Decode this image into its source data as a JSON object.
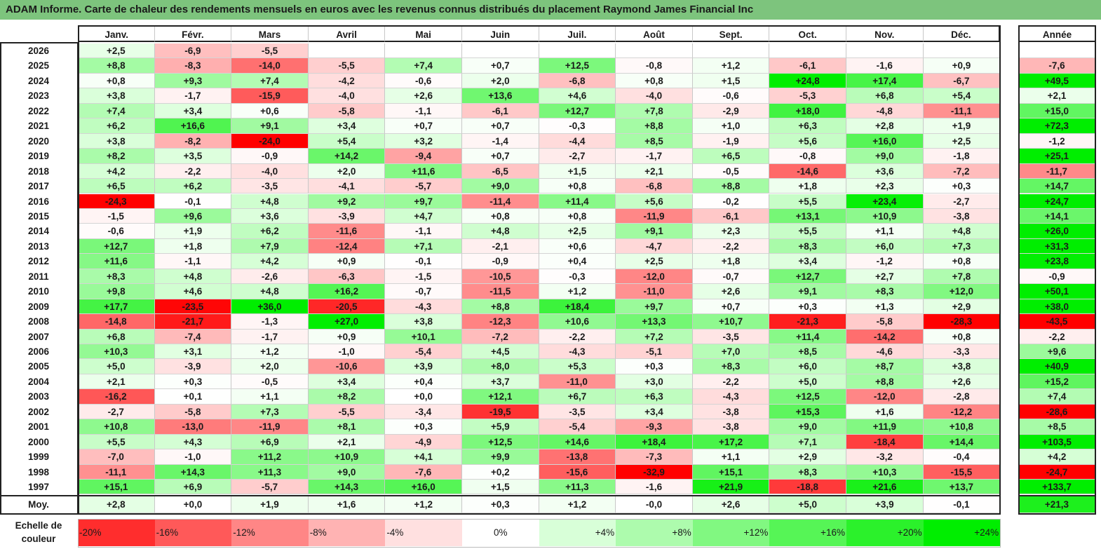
{
  "title": "ADAM Informe. Carte de chaleur des rendements mensuels en euros avec les revenus connus distribués du placement Raymond James Financial Inc",
  "chart_data": {
    "type": "heatmap",
    "months": [
      "Janv.",
      "Févr.",
      "Mars",
      "Avril",
      "Mai",
      "Juin",
      "Juil.",
      "Août",
      "Sept.",
      "Oct.",
      "Nov.",
      "Déc."
    ],
    "year_header": "Année",
    "rows": [
      {
        "year": "2026",
        "values": [
          "+2,5",
          "-6,9",
          "-5,5",
          "",
          "",
          "",
          "",
          "",
          "",
          "",
          "",
          ""
        ],
        "annual": ""
      },
      {
        "year": "2025",
        "values": [
          "+8,8",
          "-8,3",
          "-14,0",
          "-5,5",
          "+7,4",
          "+0,7",
          "+12,5",
          "-0,8",
          "+1,2",
          "-6,1",
          "-1,6",
          "+0,9"
        ],
        "annual": "-7,6"
      },
      {
        "year": "2024",
        "values": [
          "+0,8",
          "+9,3",
          "+7,4",
          "-4,2",
          "-0,6",
          "+2,0",
          "-6,8",
          "+0,8",
          "+1,5",
          "+24,8",
          "+17,4",
          "-6,7"
        ],
        "annual": "+49,5"
      },
      {
        "year": "2023",
        "values": [
          "+3,8",
          "-1,7",
          "-15,9",
          "-4,0",
          "+2,6",
          "+13,6",
          "+4,6",
          "-4,0",
          "-0,6",
          "-5,3",
          "+6,8",
          "+5,4"
        ],
        "annual": "+2,1"
      },
      {
        "year": "2022",
        "values": [
          "+7,4",
          "+3,4",
          "+0,6",
          "-5,8",
          "-1,1",
          "-6,1",
          "+12,7",
          "+7,8",
          "-2,9",
          "+18,0",
          "-4,8",
          "-11,1"
        ],
        "annual": "+15,0"
      },
      {
        "year": "2021",
        "values": [
          "+6,2",
          "+16,6",
          "+9,1",
          "+3,4",
          "+0,7",
          "+0,7",
          "-0,3",
          "+8,8",
          "+1,0",
          "+6,3",
          "+2,8",
          "+1,9"
        ],
        "annual": "+72,3"
      },
      {
        "year": "2020",
        "values": [
          "+3,8",
          "-8,2",
          "-24,0",
          "+5,4",
          "+3,2",
          "-1,4",
          "-4,4",
          "+8,5",
          "-1,9",
          "+5,6",
          "+16,0",
          "+2,5"
        ],
        "annual": "-1,2"
      },
      {
        "year": "2019",
        "values": [
          "+8,2",
          "+3,5",
          "-0,9",
          "+14,2",
          "-9,4",
          "+0,7",
          "-2,7",
          "-1,7",
          "+6,5",
          "-0,8",
          "+9,0",
          "-1,8"
        ],
        "annual": "+25,1"
      },
      {
        "year": "2018",
        "values": [
          "+4,2",
          "-2,2",
          "-4,0",
          "+2,0",
          "+11,6",
          "-6,5",
          "+1,5",
          "+2,1",
          "-0,5",
          "-14,6",
          "+3,6",
          "-7,2"
        ],
        "annual": "-11,7"
      },
      {
        "year": "2017",
        "values": [
          "+6,5",
          "+6,2",
          "-3,5",
          "-4,1",
          "-5,7",
          "+9,0",
          "+0,8",
          "-6,8",
          "+8,8",
          "+1,8",
          "+2,3",
          "+0,3"
        ],
        "annual": "+14,7"
      },
      {
        "year": "2016",
        "values": [
          "-24,3",
          "-0,1",
          "+4,8",
          "+9,2",
          "+9,7",
          "-11,4",
          "+11,4",
          "+5,6",
          "-0,2",
          "+5,5",
          "+23,4",
          "-2,7"
        ],
        "annual": "+24,7"
      },
      {
        "year": "2015",
        "values": [
          "-1,5",
          "+9,6",
          "+3,6",
          "-3,9",
          "+4,7",
          "+0,8",
          "+0,8",
          "-11,9",
          "-6,1",
          "+13,1",
          "+10,9",
          "-3,8"
        ],
        "annual": "+14,1"
      },
      {
        "year": "2014",
        "values": [
          "-0,6",
          "+1,9",
          "+6,2",
          "-11,6",
          "-1,1",
          "+4,8",
          "+2,5",
          "+9,1",
          "+2,3",
          "+5,5",
          "+1,1",
          "+4,8"
        ],
        "annual": "+26,0"
      },
      {
        "year": "2013",
        "values": [
          "+12,7",
          "+1,8",
          "+7,9",
          "-12,4",
          "+7,1",
          "-2,1",
          "+0,6",
          "-4,7",
          "-2,2",
          "+8,3",
          "+6,0",
          "+7,3"
        ],
        "annual": "+31,3"
      },
      {
        "year": "2012",
        "values": [
          "+11,6",
          "-1,1",
          "+4,2",
          "+0,9",
          "-0,1",
          "-0,9",
          "+0,4",
          "+2,5",
          "+1,8",
          "+3,4",
          "-1,2",
          "+0,8"
        ],
        "annual": "+23,8"
      },
      {
        "year": "2011",
        "values": [
          "+8,3",
          "+4,8",
          "-2,6",
          "-6,3",
          "-1,5",
          "-10,5",
          "-0,3",
          "-12,0",
          "-0,7",
          "+12,7",
          "+2,7",
          "+7,8"
        ],
        "annual": "-0,9"
      },
      {
        "year": "2010",
        "values": [
          "+9,8",
          "+4,6",
          "+4,8",
          "+16,2",
          "-0,7",
          "-11,5",
          "+1,2",
          "-11,0",
          "+2,6",
          "+9,1",
          "+8,3",
          "+12,0"
        ],
        "annual": "+50,1"
      },
      {
        "year": "2009",
        "values": [
          "+17,7",
          "-23,5",
          "+36,0",
          "-20,5",
          "-4,3",
          "+8,8",
          "+18,4",
          "+9,7",
          "+0,7",
          "+0,3",
          "+1,3",
          "+2,9"
        ],
        "annual": "+38,0"
      },
      {
        "year": "2008",
        "values": [
          "-14,8",
          "-21,7",
          "-1,3",
          "+27,0",
          "+3,8",
          "-12,3",
          "+10,6",
          "+13,3",
          "+10,7",
          "-21,3",
          "-5,8",
          "-28,3"
        ],
        "annual": "-43,5"
      },
      {
        "year": "2007",
        "values": [
          "+6,8",
          "-7,4",
          "-1,7",
          "+0,9",
          "+10,1",
          "-7,2",
          "-2,2",
          "+7,2",
          "-3,5",
          "+11,4",
          "-14,2",
          "+0,8"
        ],
        "annual": "-2,2"
      },
      {
        "year": "2006",
        "values": [
          "+10,3",
          "+3,1",
          "+1,2",
          "-1,0",
          "-5,4",
          "+4,5",
          "-4,3",
          "-5,1",
          "+7,0",
          "+8,5",
          "-4,6",
          "-3,3"
        ],
        "annual": "+9,6"
      },
      {
        "year": "2005",
        "values": [
          "+5,0",
          "-3,9",
          "+2,0",
          "-10,6",
          "+3,9",
          "+8,0",
          "+5,3",
          "+0,3",
          "+8,3",
          "+6,0",
          "+8,7",
          "+3,8"
        ],
        "annual": "+40,9"
      },
      {
        "year": "2004",
        "values": [
          "+2,1",
          "+0,3",
          "-0,5",
          "+3,4",
          "+0,4",
          "+3,7",
          "-11,0",
          "+3,0",
          "-2,2",
          "+5,0",
          "+8,8",
          "+2,6"
        ],
        "annual": "+15,2"
      },
      {
        "year": "2003",
        "values": [
          "-16,2",
          "+0,1",
          "+1,1",
          "+8,2",
          "+0,0",
          "+12,1",
          "+6,7",
          "+6,3",
          "-4,3",
          "+12,5",
          "-12,0",
          "-2,8"
        ],
        "annual": "+7,4"
      },
      {
        "year": "2002",
        "values": [
          "-2,7",
          "-5,8",
          "+7,3",
          "-5,5",
          "-3,4",
          "-19,5",
          "-3,5",
          "+3,4",
          "-3,8",
          "+15,3",
          "+1,6",
          "-12,2"
        ],
        "annual": "-28,6"
      },
      {
        "year": "2001",
        "values": [
          "+10,8",
          "-13,0",
          "-11,9",
          "+8,1",
          "+0,3",
          "+5,9",
          "-5,4",
          "-9,3",
          "-3,8",
          "+9,0",
          "+11,9",
          "+10,8"
        ],
        "annual": "+8,5"
      },
      {
        "year": "2000",
        "values": [
          "+5,5",
          "+4,3",
          "+6,9",
          "+2,1",
          "-4,9",
          "+12,5",
          "+14,6",
          "+18,4",
          "+17,2",
          "+7,1",
          "-18,4",
          "+14,4"
        ],
        "annual": "+103,5"
      },
      {
        "year": "1999",
        "values": [
          "-7,0",
          "-1,0",
          "+11,2",
          "+10,9",
          "+4,1",
          "+9,9",
          "-13,8",
          "-7,3",
          "+1,1",
          "+2,9",
          "-3,2",
          "-0,4"
        ],
        "annual": "+4,2"
      },
      {
        "year": "1998",
        "values": [
          "-11,1",
          "+14,3",
          "+11,3",
          "+9,0",
          "-7,6",
          "+0,2",
          "-15,6",
          "-32,9",
          "+15,1",
          "+8,3",
          "+10,3",
          "-15,5"
        ],
        "annual": "-24,7"
      },
      {
        "year": "1997",
        "values": [
          "+15,1",
          "+6,9",
          "-5,7",
          "+14,3",
          "+16,0",
          "+1,5",
          "+11,3",
          "-1,6",
          "+21,9",
          "-18,8",
          "+21,6",
          "+13,7"
        ],
        "annual": "+133,7"
      }
    ],
    "average": {
      "label": "Moy.",
      "values": [
        "+2,8",
        "+0,0",
        "+1,9",
        "+1,6",
        "+1,2",
        "+0,3",
        "+1,2",
        "-0,0",
        "+2,6",
        "+5,0",
        "+3,9",
        "-0,1"
      ],
      "annual": "+21,3"
    },
    "legend": {
      "label_line1": "Echelle de",
      "label_line2": "couleur",
      "steps": [
        {
          "label": "-20%",
          "value": -20
        },
        {
          "label": "-16%",
          "value": -16
        },
        {
          "label": "-12%",
          "value": -12
        },
        {
          "label": "-8%",
          "value": -8
        },
        {
          "label": "-4%",
          "value": -4
        },
        {
          "label": "0%",
          "value": 0
        },
        {
          "label": "+4%",
          "value": 4
        },
        {
          "label": "+8%",
          "value": 8
        },
        {
          "label": "+12%",
          "value": 12
        },
        {
          "label": "+16%",
          "value": 16
        },
        {
          "label": "+20%",
          "value": 20
        },
        {
          "label": "+24%",
          "value": 24
        }
      ]
    },
    "colors": {
      "negative_max": "#ff0000",
      "neutral": "#ffffff",
      "positive_max": "#00ee00",
      "title_bg": "#7dc47d"
    }
  }
}
